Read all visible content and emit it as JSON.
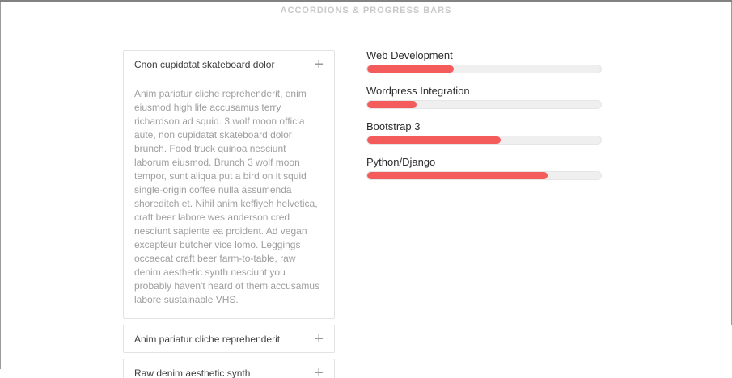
{
  "page": {
    "title": "ACCORDIONS & PROGRESS BARS"
  },
  "accordion": {
    "toggle_icon": "+",
    "panels": [
      {
        "title": "Cnon cupidatat skateboard dolor",
        "expanded": true,
        "body": "Anim pariatur cliche reprehenderit, enim eiusmod high life accusamus terry richardson ad squid. 3 wolf moon officia aute, non cupidatat skateboard dolor brunch. Food truck quinoa nesciunt laborum eiusmod. Brunch 3 wolf moon tempor, sunt aliqua put a bird on it squid single-origin coffee nulla assumenda shoreditch et. Nihil anim keffiyeh helvetica, craft beer labore wes anderson cred nesciunt sapiente ea proident. Ad vegan excepteur butcher vice lomo. Leggings occaecat craft beer farm-to-table, raw denim aesthetic synth nesciunt you probably haven't heard of them accusamus labore sustainable VHS."
      },
      {
        "title": "Anim pariatur cliche reprehenderit",
        "expanded": false
      },
      {
        "title": "Raw denim aesthetic synth",
        "expanded": false
      }
    ]
  },
  "progress": {
    "fill_color": "#f45c5c",
    "track_color": "#efefef",
    "bars": [
      {
        "label": "Web Development",
        "percent": 37
      },
      {
        "label": "Wordpress Integration",
        "percent": 21
      },
      {
        "label": "Bootstrap 3",
        "percent": 57
      },
      {
        "label": "Python/Django",
        "percent": 77
      }
    ]
  }
}
